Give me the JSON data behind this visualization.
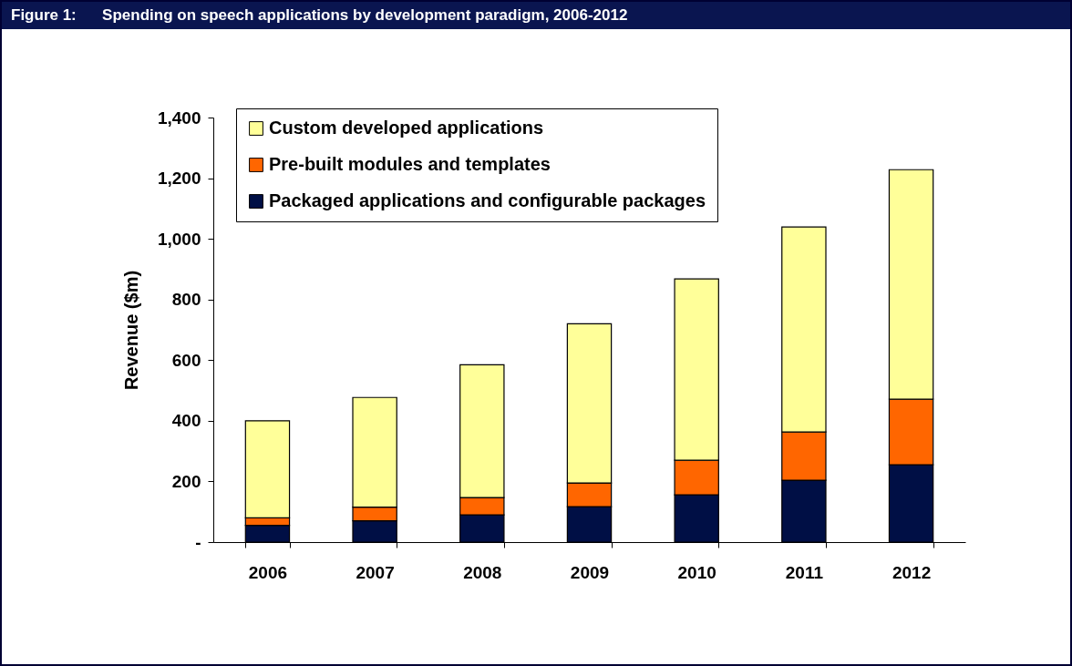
{
  "chart_data": {
    "type": "bar",
    "title": "Figure 1:      Spending on speech applications by development paradigm, 2006-2012",
    "ylabel": "Revenue ($m)",
    "categories": [
      "2006",
      "2007",
      "2008",
      "2009",
      "2010",
      "2011",
      "2012"
    ],
    "stacked": true,
    "series": [
      {
        "name": "Packaged applications and configurable packages",
        "color": "#000f45",
        "values": [
          55,
          70,
          90,
          117,
          156,
          204,
          255
        ]
      },
      {
        "name": "Pre-built modules and templates",
        "color": "#ff6600",
        "values": [
          25,
          45,
          57,
          78,
          114,
          159,
          216
        ]
      },
      {
        "name": "Custom developed applications",
        "color": "#ffff99",
        "values": [
          320,
          362,
          438,
          525,
          598,
          676,
          757
        ]
      }
    ],
    "ylim": [
      0,
      1400
    ],
    "yticks": [
      {
        "value": 0,
        "label": "-"
      },
      200,
      400,
      600,
      800,
      {
        "value": 1000,
        "label": "1,000"
      },
      {
        "value": 1200,
        "label": "1,200"
      },
      {
        "value": 1400,
        "label": "1,400"
      }
    ],
    "grid": false,
    "legend": "top left"
  }
}
